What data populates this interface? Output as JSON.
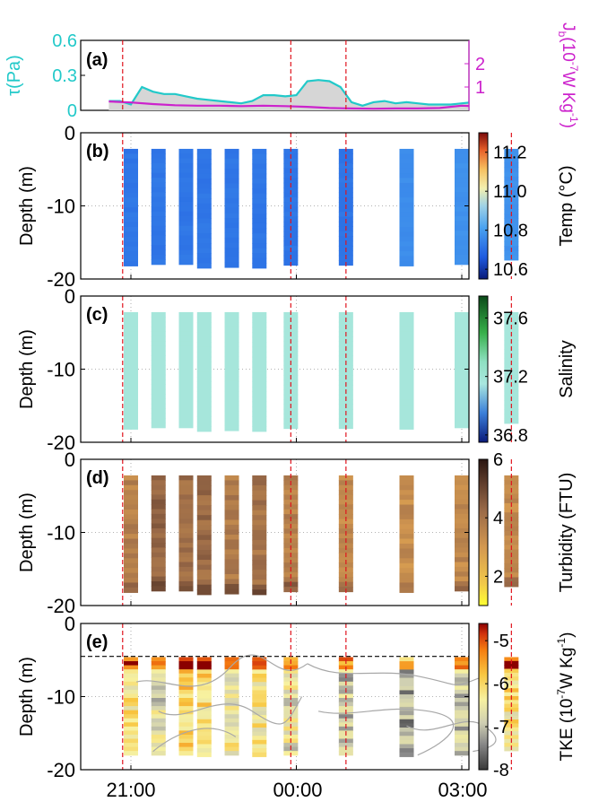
{
  "colors": {
    "tau": "#22c9c9",
    "jb": "#cc22cc",
    "fill": "#d6d6d6",
    "vline": "#e0141e",
    "black": "#000000"
  },
  "x_ticks": [
    "21:00",
    "00:00",
    "03:00"
  ],
  "chart_data": [
    {
      "type": "line",
      "panel": "a",
      "label": "(a)",
      "ylabel_left": "τ(Pa)",
      "ylabel_right": "J_b(10^-7W Kg^-1)",
      "ylabel_right_parts": {
        "base": "J",
        "sub": "b",
        "pre": "(10",
        "sup": "-7",
        "post": "W Kg",
        "sup2": "-1",
        "close": ")"
      },
      "ylim_left": [
        0,
        0.6
      ],
      "yticks_left": [
        "0",
        "0.3",
        "0.6"
      ],
      "ylim_right": [
        0,
        3
      ],
      "yticks_right": [
        "1",
        "2"
      ],
      "x_hours": [
        20.0,
        23.2
      ],
      "series": [
        {
          "axis": "left",
          "x": [
            -0.4,
            -0.2,
            0.0,
            0.2,
            0.4,
            0.6,
            0.8,
            1.0,
            1.2,
            1.4,
            1.6,
            1.8,
            2.0,
            2.2,
            2.4,
            2.6,
            2.8,
            3.0,
            3.2,
            3.4,
            3.6,
            3.8,
            4.0,
            4.2,
            4.4,
            4.6,
            4.8,
            5.0,
            5.2,
            5.4,
            5.6,
            5.8,
            6.0,
            6.2,
            6.4,
            6.6,
            6.8,
            7.0,
            7.2,
            7.4,
            7.6,
            7.8,
            8.0
          ],
          "y": [
            0.08,
            0.08,
            0.05,
            0.2,
            0.16,
            0.14,
            0.14,
            0.12,
            0.1,
            0.09,
            0.08,
            0.07,
            0.06,
            0.08,
            0.13,
            0.13,
            0.12,
            0.13,
            0.25,
            0.26,
            0.25,
            0.2,
            0.07,
            0.04,
            0.07,
            0.08,
            0.06,
            0.07,
            0.06,
            0.05,
            0.05,
            0.05,
            0.06,
            0.07,
            0.06,
            0.06,
            0.08,
            0.1,
            0.12,
            0.1,
            0.12,
            0.17,
            0.17
          ]
        },
        {
          "axis": "right",
          "x": [
            -0.4,
            0.0,
            0.4,
            0.8,
            1.2,
            1.6,
            2.0,
            2.4,
            2.8,
            3.2,
            3.6,
            4.0,
            4.4,
            4.8,
            5.2,
            5.6,
            6.0,
            6.4,
            6.8,
            7.2,
            7.6,
            8.0
          ],
          "y": [
            0.38,
            0.34,
            0.27,
            0.22,
            0.2,
            0.2,
            0.18,
            0.2,
            0.18,
            0.15,
            0.1,
            0.08,
            0.07,
            0.08,
            0.08,
            0.1,
            0.2,
            0.16,
            0.16,
            0.15,
            0.12,
            0.12
          ]
        }
      ]
    },
    {
      "type": "heatmap",
      "panel": "b",
      "label": "(b)",
      "ylabel": "Depth  (m)",
      "ylim": [
        -20,
        0
      ],
      "yticks": [
        "0",
        "-10",
        "-20"
      ],
      "cbar_label": "Temp (°C)",
      "clim": [
        10.55,
        11.3
      ],
      "cbar_ticks": [
        "11.2",
        "11.0",
        "10.8",
        "10.6"
      ],
      "cbar_tick_values": [
        11.2,
        11.0,
        10.8,
        10.6
      ],
      "profiles": [
        {
          "x": 0.0,
          "top": -2.2,
          "bottom": -18.2,
          "value": 10.72
        },
        {
          "x": 0.5,
          "top": -2.2,
          "bottom": -18.0,
          "value": 10.72
        },
        {
          "x": 1.0,
          "top": -2.2,
          "bottom": -18.0,
          "value": 10.72
        },
        {
          "x": 1.33,
          "top": -2.2,
          "bottom": -18.5,
          "value": 10.72
        },
        {
          "x": 1.83,
          "top": -2.2,
          "bottom": -18.4,
          "value": 10.72
        },
        {
          "x": 2.33,
          "top": -2.2,
          "bottom": -18.5,
          "value": 10.72
        },
        {
          "x": 2.9,
          "top": -2.2,
          "bottom": -18.1,
          "value": 10.72
        },
        {
          "x": 3.9,
          "top": -2.2,
          "bottom": -18.1,
          "value": 10.72
        },
        {
          "x": 5.0,
          "top": -2.2,
          "bottom": -18.2,
          "value": 10.77
        },
        {
          "x": 6.0,
          "top": -2.2,
          "bottom": -18.0,
          "value": 10.78
        },
        {
          "x": 6.9,
          "top": -2.2,
          "bottom": -17.4,
          "value": 10.78
        }
      ]
    },
    {
      "type": "heatmap",
      "panel": "c",
      "label": "(c)",
      "ylabel": "Depth  (m)",
      "ylim": [
        -20,
        0
      ],
      "yticks": [
        "0",
        "-10",
        "-20"
      ],
      "cbar_label": "Salinity",
      "clim": [
        36.75,
        37.75
      ],
      "cbar_ticks": [
        "37.6",
        "37.2",
        "36.8"
      ],
      "cbar_tick_values": [
        37.6,
        37.2,
        36.8
      ],
      "profiles": [
        {
          "x": 0.0,
          "top": -2.2,
          "bottom": -18.2,
          "value": 37.17
        },
        {
          "x": 0.5,
          "top": -2.2,
          "bottom": -18.0,
          "value": 37.17
        },
        {
          "x": 1.0,
          "top": -2.2,
          "bottom": -18.0,
          "value": 37.17
        },
        {
          "x": 1.33,
          "top": -2.2,
          "bottom": -18.5,
          "value": 37.17
        },
        {
          "x": 1.83,
          "top": -2.2,
          "bottom": -18.4,
          "value": 37.17
        },
        {
          "x": 2.33,
          "top": -2.2,
          "bottom": -18.5,
          "value": 37.17
        },
        {
          "x": 2.9,
          "top": -2.2,
          "bottom": -18.1,
          "value": 37.17
        },
        {
          "x": 3.9,
          "top": -2.2,
          "bottom": -18.1,
          "value": 37.17
        },
        {
          "x": 5.0,
          "top": -2.2,
          "bottom": -18.2,
          "value": 37.17
        },
        {
          "x": 6.0,
          "top": -2.2,
          "bottom": -18.0,
          "value": 37.17
        },
        {
          "x": 6.9,
          "top": -2.2,
          "bottom": -17.4,
          "value": 37.17
        }
      ]
    },
    {
      "type": "heatmap",
      "panel": "d",
      "label": "(d)",
      "ylabel": "Depth  (m)",
      "ylim": [
        -20,
        0
      ],
      "yticks": [
        "0",
        "-10",
        "-20"
      ],
      "cbar_label": "Turbidity (FTU)",
      "clim": [
        1,
        6
      ],
      "cbar_ticks": [
        "6",
        "4",
        "2"
      ],
      "cbar_tick_values": [
        6,
        4,
        2
      ],
      "profiles": [
        {
          "x": 0.0,
          "top": -2.2,
          "bottom": -18.2,
          "value": 3.6
        },
        {
          "x": 0.5,
          "top": -2.2,
          "bottom": -18.0,
          "value": 4.3
        },
        {
          "x": 1.0,
          "top": -2.2,
          "bottom": -18.0,
          "value": 4.2
        },
        {
          "x": 1.33,
          "top": -2.2,
          "bottom": -18.5,
          "value": 4.2
        },
        {
          "x": 1.83,
          "top": -2.2,
          "bottom": -18.4,
          "value": 3.8
        },
        {
          "x": 2.33,
          "top": -2.2,
          "bottom": -18.5,
          "value": 4.0
        },
        {
          "x": 2.9,
          "top": -2.2,
          "bottom": -18.1,
          "value": 3.6
        },
        {
          "x": 3.9,
          "top": -2.2,
          "bottom": -18.1,
          "value": 3.4
        },
        {
          "x": 5.0,
          "top": -2.2,
          "bottom": -18.2,
          "value": 3.3
        },
        {
          "x": 6.0,
          "top": -2.2,
          "bottom": -18.0,
          "value": 3.4
        },
        {
          "x": 6.9,
          "top": -2.2,
          "bottom": -17.4,
          "value": 3.3
        }
      ]
    },
    {
      "type": "heatmap",
      "panel": "e",
      "label": "(e)",
      "ylabel": "Depth  (m)",
      "ylim": [
        -20,
        0
      ],
      "yticks": [
        "0",
        "-10",
        "-20"
      ],
      "cbar_label": "TKE (10^-7W Kg^-1)",
      "cbar_label_parts": {
        "pre": "TKE (10",
        "sup": "-7",
        "post": "W Kg",
        "sup2": "-1",
        "close": ")"
      },
      "clim": [
        -8,
        -4.6
      ],
      "cbar_ticks": [
        "-5",
        "-6",
        "-7",
        "-8"
      ],
      "cbar_tick_values": [
        -5,
        -6,
        -7,
        -8
      ],
      "hline_depth": -4.5,
      "profiles": [
        {
          "x": 0.0,
          "top": -4.6,
          "bottom": -18.0,
          "value": -6.3
        },
        {
          "x": 0.5,
          "top": -4.6,
          "bottom": -18.0,
          "value": -6.7
        },
        {
          "x": 1.0,
          "top": -4.6,
          "bottom": -18.0,
          "value": -6.0
        },
        {
          "x": 1.33,
          "top": -4.6,
          "bottom": -18.2,
          "value": -6.0
        },
        {
          "x": 1.83,
          "top": -4.6,
          "bottom": -18.0,
          "value": -6.4
        },
        {
          "x": 2.33,
          "top": -4.6,
          "bottom": -18.2,
          "value": -6.3
        },
        {
          "x": 2.9,
          "top": -4.6,
          "bottom": -18.0,
          "value": -6.6
        },
        {
          "x": 3.9,
          "top": -4.6,
          "bottom": -18.0,
          "value": -6.9
        },
        {
          "x": 5.0,
          "top": -4.6,
          "bottom": -18.2,
          "value": -7.2
        },
        {
          "x": 6.0,
          "top": -4.6,
          "bottom": -18.0,
          "value": -6.9
        },
        {
          "x": 6.9,
          "top": -4.6,
          "bottom": -17.4,
          "value": -6.2
        }
      ]
    }
  ]
}
